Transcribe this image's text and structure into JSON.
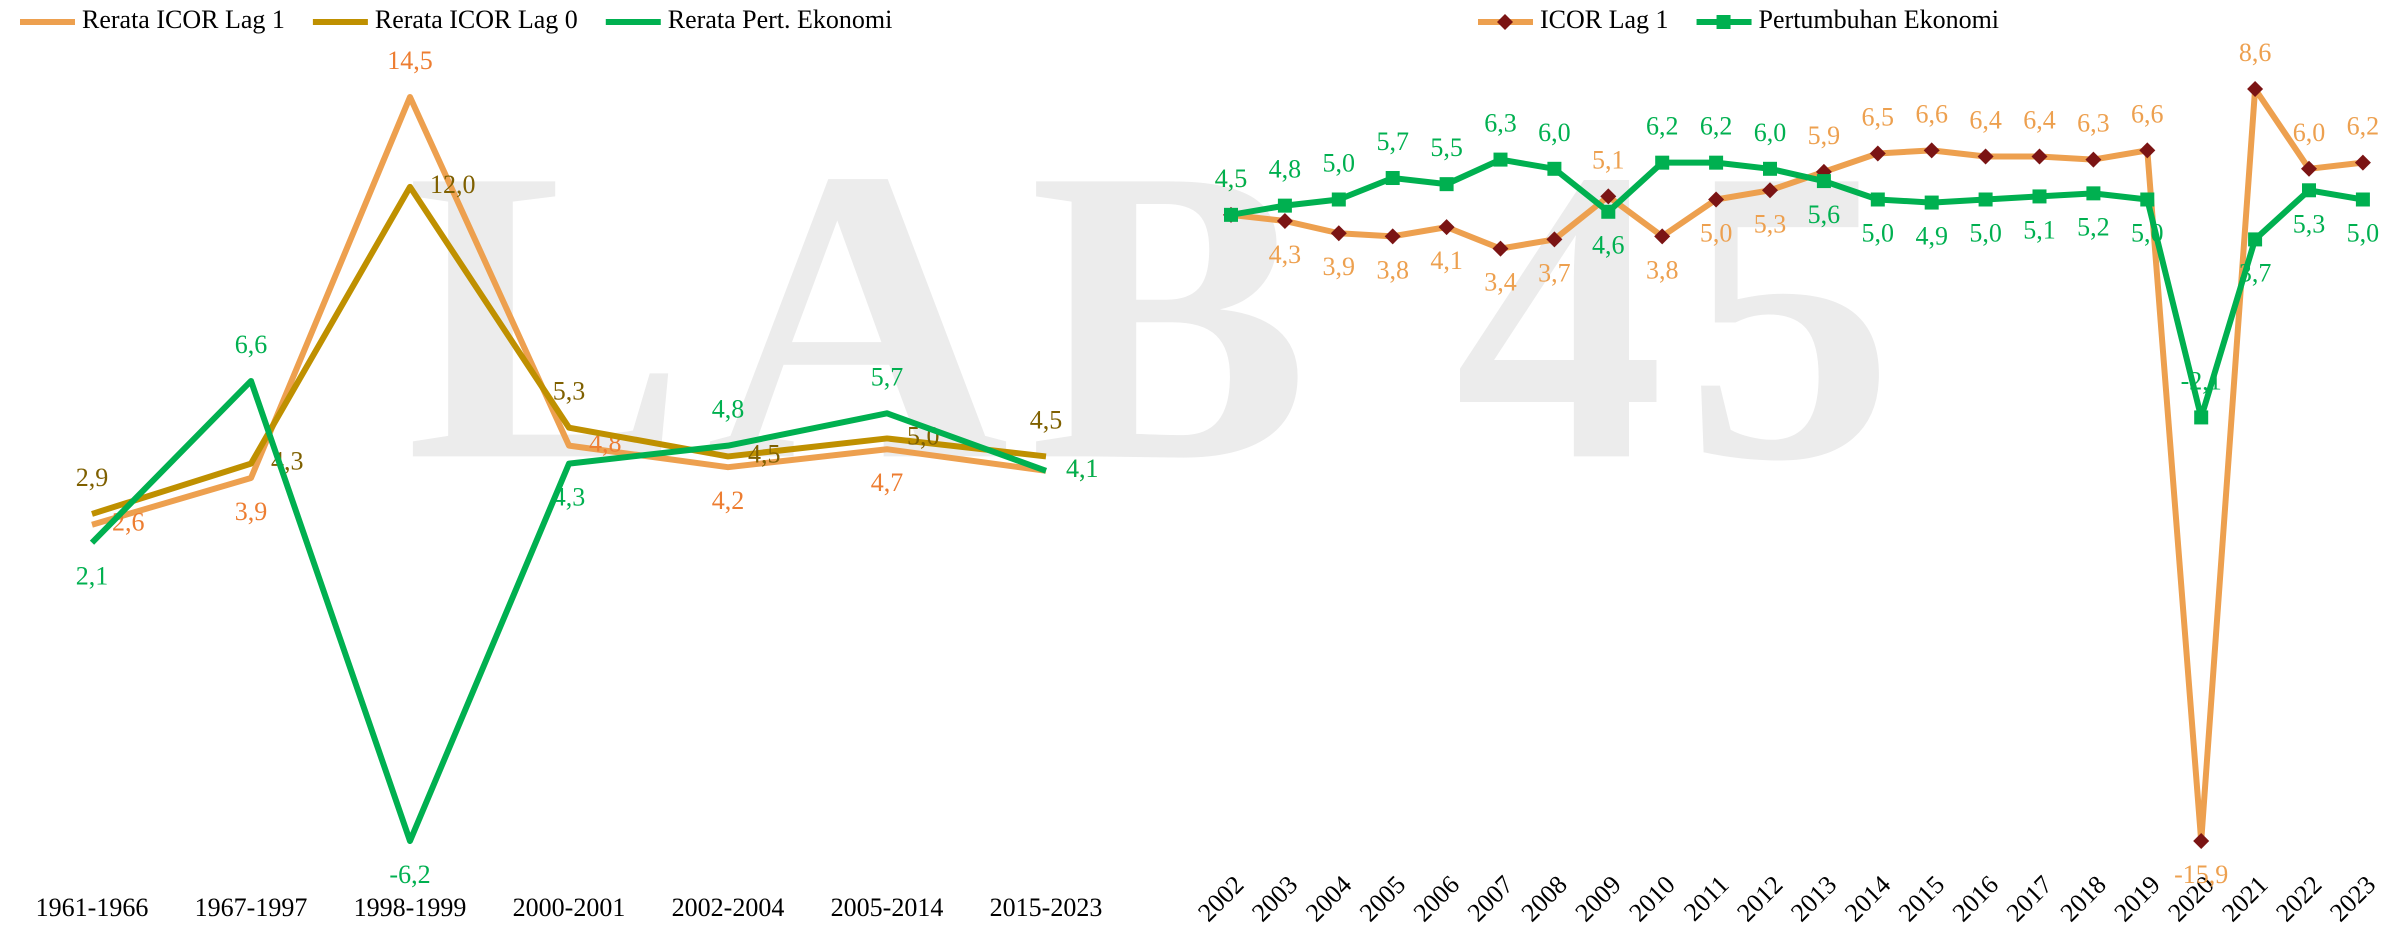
{
  "watermark": "LAB 45",
  "chart_data": [
    {
      "type": "line",
      "categories": [
        "1961-1966",
        "1967-1997",
        "1998-1999",
        "2000-2001",
        "2002-2004",
        "2005-2014",
        "2015-2023"
      ],
      "series": [
        {
          "name": "Rerata ICOR Lag 1",
          "color": "#EDA04F",
          "label_color": "#ED7D31",
          "values": [
            2.6,
            3.9,
            14.5,
            4.8,
            4.2,
            4.7,
            4.1
          ],
          "value_labels": [
            "2,6",
            "3,9",
            "14,5",
            "4,8",
            "4,2",
            "4,7",
            "4,1"
          ]
        },
        {
          "name": "Rerata ICOR Lag 0",
          "color": "#BF9000",
          "label_color": "#7F6000",
          "values": [
            2.9,
            4.3,
            12.0,
            5.3,
            4.5,
            5.0,
            4.5
          ],
          "value_labels": [
            "2,9",
            "4,3",
            "12,0",
            "5,3",
            "4,5",
            "5,0",
            "4,5"
          ]
        },
        {
          "name": "Rerata Pert. Ekonomi",
          "color": "#00B050",
          "label_color": "#00B050",
          "values": [
            2.1,
            6.6,
            -6.2,
            4.3,
            4.8,
            5.7,
            4.1
          ],
          "value_labels": [
            "2,1",
            "6,6",
            "-6,2",
            "4,3",
            "4,8",
            "5,7",
            "4,1"
          ]
        }
      ]
    },
    {
      "type": "line",
      "categories": [
        "2002",
        "2003",
        "2004",
        "2005",
        "2006",
        "2007",
        "2008",
        "2009",
        "2010",
        "2011",
        "2012",
        "2013",
        "2014",
        "2015",
        "2016",
        "2017",
        "2018",
        "2019",
        "2020",
        "2021",
        "2022",
        "2023"
      ],
      "series": [
        {
          "name": "ICOR Lag 1",
          "color": "#EDA04F",
          "label_color": "#EDA04F",
          "marker": "diamond",
          "marker_color": "#7B1414",
          "values": [
            4.5,
            4.3,
            3.9,
            3.8,
            4.1,
            3.4,
            3.7,
            5.1,
            3.8,
            5.0,
            5.3,
            5.9,
            6.5,
            6.6,
            6.4,
            6.4,
            6.3,
            6.6,
            -15.9,
            8.6,
            6.0,
            6.2
          ],
          "value_labels": [
            "4,5",
            "4,3",
            "3,9",
            "3,8",
            "4,1",
            "3,4",
            "3,7",
            "5,1",
            "3,8",
            "5,0",
            "5,3",
            "5,9",
            "6,5",
            "6,6",
            "6,4",
            "6,4",
            "6,3",
            "6,6",
            "-15,9",
            "8,6",
            "6,0",
            "6,2"
          ]
        },
        {
          "name": "Pertumbuhan Ekonomi",
          "color": "#00B050",
          "label_color": "#00B050",
          "marker": "square",
          "marker_color": "#00B050",
          "values": [
            4.5,
            4.8,
            5.0,
            5.7,
            5.5,
            6.3,
            6.0,
            4.6,
            6.2,
            6.2,
            6.0,
            5.6,
            5.0,
            4.9,
            5.0,
            5.1,
            5.2,
            5.0,
            -2.1,
            3.7,
            5.3,
            5.0
          ],
          "value_labels": [
            "4,5",
            "4,8",
            "5,0",
            "5,7",
            "5,5",
            "6,3",
            "6,0",
            "4,6",
            "6,2",
            "6,2",
            "6,0",
            "5,6",
            "5,0",
            "4,9",
            "5,0",
            "5,1",
            "5,2",
            "5,0",
            "-2,1",
            "3,7",
            "5,3",
            "5,0"
          ]
        }
      ]
    }
  ]
}
